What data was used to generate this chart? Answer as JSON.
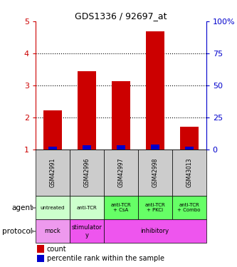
{
  "title": "GDS1336 / 92697_at",
  "samples": [
    "GSM42991",
    "GSM42996",
    "GSM42997",
    "GSM42998",
    "GSM43013"
  ],
  "count_values": [
    2.22,
    3.45,
    3.12,
    4.68,
    1.7
  ],
  "percentile_values": [
    0.08,
    0.12,
    0.12,
    0.14,
    0.08
  ],
  "bar_bottom": 1.0,
  "ylim": [
    1,
    5
  ],
  "yticks_left": [
    1,
    2,
    3,
    4,
    5
  ],
  "ytick_left_labels": [
    "1",
    "2",
    "3",
    "4",
    "5"
  ],
  "yticks_right_pos": [
    1,
    2,
    3,
    4,
    5
  ],
  "ytick_right_labels": [
    "0",
    "25",
    "50",
    "75",
    "100%"
  ],
  "count_color": "#cc0000",
  "percentile_color": "#0000cc",
  "agent_labels": [
    "untreated",
    "anti-TCR",
    "anti-TCR\n+ CsA",
    "anti-TCR\n+ PKCi",
    "anti-TCR\n+ Combo"
  ],
  "agent_bg_light": "#ccffcc",
  "agent_bg_dark": "#66ff66",
  "protocol_bg": "#ee55ee",
  "protocol_bg_mock": "#ee99ee",
  "sample_bg": "#cccccc",
  "bar_width": 0.55,
  "blue_bar_width": 0.25
}
